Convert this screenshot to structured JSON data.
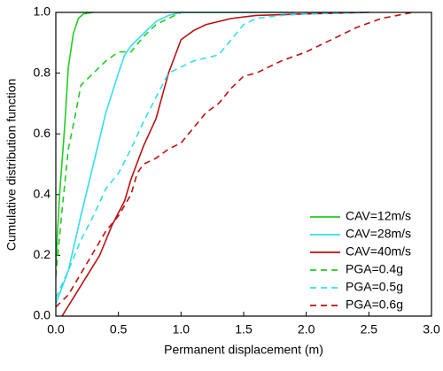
{
  "chart_data": {
    "type": "line",
    "xlabel": "Permanent displacement (m)",
    "ylabel": "Cumulative distribution function",
    "xlim": [
      0,
      3
    ],
    "ylim": [
      0,
      1
    ],
    "xticks": [
      {
        "value": 0,
        "label": "0.0"
      },
      {
        "value": 0.5,
        "label": "0.5"
      },
      {
        "value": 1,
        "label": "1.0"
      },
      {
        "value": 1.5,
        "label": "1.5"
      },
      {
        "value": 2,
        "label": "2.0"
      },
      {
        "value": 2.5,
        "label": "2.5"
      },
      {
        "value": 3,
        "label": "3.0"
      }
    ],
    "yticks": [
      {
        "value": 0,
        "label": "0.0"
      },
      {
        "value": 0.2,
        "label": "0.2"
      },
      {
        "value": 0.4,
        "label": "0.4"
      },
      {
        "value": 0.6,
        "label": "0.6"
      },
      {
        "value": 0.8,
        "label": "0.8"
      },
      {
        "value": 1,
        "label": "1.0"
      }
    ],
    "legend": "lower right",
    "series": [
      {
        "name": "CAV=12m/s",
        "color": "#22cc22",
        "linestyle": "solid",
        "x": [
          0,
          0.03,
          0.07,
          0.1,
          0.14,
          0.18,
          0.22,
          0.3
        ],
        "values": [
          0.17,
          0.4,
          0.62,
          0.82,
          0.93,
          0.98,
          0.995,
          1
        ]
      },
      {
        "name": "CAV=28m/s",
        "color": "#33ddee",
        "linestyle": "solid",
        "x": [
          0,
          0.1,
          0.2,
          0.3,
          0.4,
          0.5,
          0.55,
          0.6,
          0.7,
          0.8,
          0.9,
          1.0,
          1.9
        ],
        "values": [
          0.04,
          0.15,
          0.33,
          0.5,
          0.67,
          0.8,
          0.86,
          0.89,
          0.93,
          0.97,
          0.99,
          1,
          1
        ]
      },
      {
        "name": "CAV=40m/s",
        "color": "#bb1111",
        "linestyle": "solid",
        "x": [
          0.05,
          0.2,
          0.35,
          0.45,
          0.55,
          0.6,
          0.7,
          0.8,
          0.9,
          1.0,
          1.1,
          1.2,
          1.4,
          1.6,
          2.0,
          2.5
        ],
        "values": [
          0,
          0.1,
          0.2,
          0.3,
          0.38,
          0.45,
          0.56,
          0.65,
          0.8,
          0.91,
          0.94,
          0.96,
          0.98,
          0.99,
          0.995,
          1
        ]
      },
      {
        "name": "PGA=0.4g",
        "color": "#22cc22",
        "linestyle": "dashed",
        "x": [
          0,
          0.05,
          0.1,
          0.15,
          0.2,
          0.3,
          0.4,
          0.5,
          0.6,
          0.7,
          0.8,
          0.9,
          1.0
        ],
        "values": [
          0.13,
          0.35,
          0.55,
          0.65,
          0.76,
          0.8,
          0.84,
          0.87,
          0.87,
          0.92,
          0.96,
          0.98,
          1
        ]
      },
      {
        "name": "PGA=0.5g",
        "color": "#33ddee",
        "linestyle": "dashed",
        "x": [
          0,
          0.1,
          0.2,
          0.3,
          0.4,
          0.5,
          0.6,
          0.7,
          0.8,
          0.9,
          1.0,
          1.1,
          1.3,
          1.4,
          1.5,
          1.6,
          1.8,
          2.0,
          2.5
        ],
        "values": [
          0.06,
          0.15,
          0.25,
          0.33,
          0.42,
          0.47,
          0.55,
          0.64,
          0.72,
          0.8,
          0.82,
          0.84,
          0.86,
          0.91,
          0.96,
          0.98,
          0.99,
          0.995,
          1
        ]
      },
      {
        "name": "PGA=0.6g",
        "color": "#bb1111",
        "linestyle": "dashed",
        "x": [
          0,
          0.1,
          0.2,
          0.3,
          0.4,
          0.5,
          0.6,
          0.65,
          0.7,
          0.8,
          0.9,
          1.0,
          1.1,
          1.2,
          1.3,
          1.4,
          1.5,
          1.6,
          1.8,
          2.0,
          2.2,
          2.4,
          2.6,
          2.85
        ],
        "values": [
          0.03,
          0.07,
          0.14,
          0.21,
          0.28,
          0.33,
          0.4,
          0.47,
          0.5,
          0.52,
          0.55,
          0.57,
          0.62,
          0.67,
          0.7,
          0.75,
          0.79,
          0.8,
          0.84,
          0.87,
          0.91,
          0.95,
          0.98,
          1
        ]
      }
    ]
  }
}
